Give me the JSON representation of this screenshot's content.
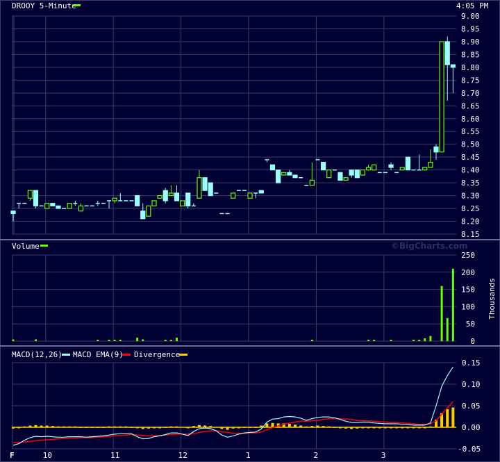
{
  "header": {
    "symbol_title": "DROOY 5-Minute",
    "time": "4:05 PM"
  },
  "watermark": "©BigCharts.com",
  "colors": {
    "background": "#000033",
    "grid": "#3c3c6c",
    "up": "#66ff00",
    "down": "#99ffff",
    "macd": "#99ffff",
    "signal": "#ff0000",
    "divergence": "#ffcc00"
  },
  "chart_data": [
    {
      "type": "candlestick",
      "title": "DROOY 5-Minute",
      "ylim": [
        8.15,
        9.0
      ],
      "yticks": [
        "9.00",
        "8.95",
        "8.90",
        "8.85",
        "8.80",
        "8.75",
        "8.70",
        "8.65",
        "8.60",
        "8.55",
        "8.50",
        "8.45",
        "8.40",
        "8.35",
        "8.30",
        "8.25",
        "8.20",
        "8.15"
      ],
      "xticks": [
        {
          "label": "F",
          "bar": 0
        },
        {
          "label": "10",
          "bar": 6
        },
        {
          "label": "11",
          "bar": 18
        },
        {
          "label": "12",
          "bar": 30
        },
        {
          "label": "1",
          "bar": 42
        },
        {
          "label": "2",
          "bar": 54
        },
        {
          "label": "3",
          "bar": 66
        }
      ],
      "ohlc": [
        [
          8.24,
          8.24,
          8.2,
          8.23
        ],
        [
          8.27,
          8.27,
          8.25,
          8.27
        ],
        [
          8.27,
          8.27,
          8.27,
          8.27
        ],
        [
          8.29,
          8.32,
          8.28,
          8.32
        ],
        [
          8.32,
          8.32,
          8.25,
          8.26
        ],
        [
          8.26,
          8.26,
          8.26,
          8.26
        ],
        [
          8.25,
          8.27,
          8.25,
          8.27
        ],
        [
          8.27,
          8.27,
          8.26,
          8.26
        ],
        [
          8.26,
          8.26,
          8.25,
          8.25
        ],
        [
          8.25,
          8.25,
          8.25,
          8.25
        ],
        [
          8.25,
          8.27,
          8.25,
          8.27
        ],
        [
          8.27,
          8.28,
          8.26,
          8.27
        ],
        [
          8.24,
          8.27,
          8.24,
          8.26
        ],
        [
          8.26,
          8.26,
          8.26,
          8.26
        ],
        [
          8.26,
          8.26,
          8.26,
          8.26
        ],
        [
          8.27,
          8.28,
          8.26,
          8.27
        ],
        [
          8.27,
          8.27,
          8.27,
          8.27
        ],
        [
          8.28,
          8.28,
          8.25,
          8.28
        ],
        [
          8.28,
          8.29,
          8.27,
          8.29
        ],
        [
          8.28,
          8.31,
          8.28,
          8.28
        ],
        [
          8.28,
          8.28,
          8.28,
          8.28
        ],
        [
          8.28,
          8.28,
          8.28,
          8.28
        ],
        [
          8.3,
          8.3,
          8.26,
          8.26
        ],
        [
          8.24,
          8.27,
          8.21,
          8.21
        ],
        [
          8.22,
          8.26,
          8.22,
          8.26
        ],
        [
          8.26,
          8.28,
          8.26,
          8.28
        ],
        [
          8.29,
          8.3,
          8.29,
          8.3
        ],
        [
          8.32,
          8.33,
          8.27,
          8.28
        ],
        [
          8.3,
          8.34,
          8.3,
          8.31
        ],
        [
          8.31,
          8.34,
          8.28,
          8.28
        ],
        [
          8.26,
          8.28,
          8.26,
          8.28
        ],
        [
          8.31,
          8.31,
          8.25,
          8.26
        ],
        [
          8.26,
          8.27,
          8.26,
          8.26
        ],
        [
          8.29,
          8.4,
          8.29,
          8.37
        ],
        [
          8.37,
          8.37,
          8.32,
          8.32
        ],
        [
          8.35,
          8.35,
          8.3,
          8.3
        ],
        [
          8.31,
          8.31,
          8.31,
          8.31
        ],
        [
          8.23,
          8.23,
          8.23,
          8.23
        ],
        [
          8.23,
          8.23,
          8.23,
          8.23
        ],
        [
          8.29,
          8.31,
          8.29,
          8.31
        ],
        [
          8.32,
          8.32,
          8.32,
          8.32
        ],
        [
          8.32,
          8.32,
          8.32,
          8.32
        ],
        [
          8.29,
          8.31,
          8.29,
          8.31
        ],
        [
          8.31,
          8.31,
          8.29,
          8.31
        ],
        [
          8.32,
          8.32,
          8.31,
          8.31
        ],
        [
          8.44,
          8.44,
          8.43,
          8.44
        ],
        [
          8.42,
          8.42,
          8.4,
          8.4
        ],
        [
          8.4,
          8.4,
          8.35,
          8.35
        ],
        [
          8.38,
          8.39,
          8.38,
          8.39
        ],
        [
          8.39,
          8.4,
          8.38,
          8.38
        ],
        [
          8.38,
          8.38,
          8.37,
          8.37
        ],
        [
          8.37,
          8.37,
          8.37,
          8.37
        ],
        [
          8.34,
          8.34,
          8.34,
          8.34
        ],
        [
          8.34,
          8.43,
          8.34,
          8.36
        ],
        [
          8.44,
          8.44,
          8.44,
          8.44
        ],
        [
          8.43,
          8.43,
          8.4,
          8.4
        ],
        [
          8.37,
          8.4,
          8.37,
          8.4
        ],
        [
          8.4,
          8.4,
          8.4,
          8.4
        ],
        [
          8.39,
          8.39,
          8.36,
          8.36
        ],
        [
          8.36,
          8.37,
          8.36,
          8.37
        ],
        [
          8.4,
          8.4,
          8.37,
          8.38
        ],
        [
          8.4,
          8.4,
          8.37,
          8.37
        ],
        [
          8.38,
          8.4,
          8.38,
          8.4
        ],
        [
          8.4,
          8.42,
          8.4,
          8.41
        ],
        [
          8.4,
          8.42,
          8.4,
          8.42
        ],
        [
          8.39,
          8.39,
          8.39,
          8.39
        ],
        [
          8.39,
          8.39,
          8.39,
          8.39
        ],
        [
          8.42,
          8.43,
          8.4,
          8.41
        ],
        [
          8.39,
          8.39,
          8.39,
          8.39
        ],
        [
          8.4,
          8.41,
          8.4,
          8.41
        ],
        [
          8.45,
          8.45,
          8.4,
          8.4
        ],
        [
          8.4,
          8.4,
          8.4,
          8.4
        ],
        [
          8.4,
          8.46,
          8.4,
          8.4
        ],
        [
          8.4,
          8.41,
          8.4,
          8.41
        ],
        [
          8.41,
          8.48,
          8.41,
          8.43
        ],
        [
          8.49,
          8.5,
          8.44,
          8.47
        ],
        [
          8.47,
          8.9,
          8.47,
          8.9
        ],
        [
          8.9,
          8.92,
          8.67,
          8.81
        ],
        [
          8.81,
          8.81,
          8.7,
          8.8
        ]
      ]
    },
    {
      "type": "bar",
      "title": "Volume",
      "ylabel": "Thousands",
      "ylim": [
        0,
        250
      ],
      "yticks": [
        "250",
        "200",
        "150",
        "100",
        "50",
        "0"
      ],
      "values": [
        5,
        0,
        0,
        0,
        5,
        0,
        0,
        0,
        0,
        0,
        0,
        0,
        0,
        0,
        0,
        4,
        0,
        4,
        4,
        4,
        0,
        0,
        10,
        5,
        0,
        0,
        0,
        4,
        4,
        10,
        0,
        0,
        0,
        0,
        0,
        0,
        0,
        0,
        0,
        0,
        0,
        0,
        0,
        0,
        0,
        0,
        0,
        0,
        0,
        0,
        0,
        0,
        0,
        4,
        0,
        0,
        0,
        0,
        0,
        0,
        0,
        0,
        0,
        4,
        4,
        0,
        0,
        4,
        0,
        0,
        0,
        4,
        4,
        8,
        15,
        0,
        160,
        67,
        210
      ]
    },
    {
      "type": "line",
      "title": "MACD(12,26)",
      "legend": [
        "MACD(12,26)",
        "MACD EMA(9)",
        "Divergence"
      ],
      "ylim": [
        -0.05,
        0.15
      ],
      "yticks": [
        "0.15",
        "0.10",
        "0.05",
        "0.00",
        "-0.05"
      ],
      "macd": [
        -0.042,
        -0.038,
        -0.03,
        -0.024,
        -0.021,
        -0.022,
        -0.021,
        -0.022,
        -0.023,
        -0.023,
        -0.022,
        -0.022,
        -0.022,
        -0.023,
        -0.022,
        -0.021,
        -0.02,
        -0.018,
        -0.016,
        -0.015,
        -0.015,
        -0.015,
        -0.022,
        -0.027,
        -0.026,
        -0.022,
        -0.02,
        -0.017,
        -0.013,
        -0.013,
        -0.016,
        -0.019,
        -0.01,
        -0.003,
        -0.002,
        -0.003,
        -0.008,
        -0.018,
        -0.023,
        -0.02,
        -0.016,
        -0.013,
        -0.012,
        -0.011,
        -0.004,
        0.012,
        0.019,
        0.02,
        0.024,
        0.025,
        0.024,
        0.021,
        0.016,
        0.02,
        0.023,
        0.024,
        0.024,
        0.022,
        0.018,
        0.014,
        0.011,
        0.011,
        0.012,
        0.012,
        0.01,
        0.009,
        0.008,
        0.008,
        0.008,
        0.007,
        0.006,
        0.005,
        0.005,
        0.005,
        0.01,
        0.05,
        0.095,
        0.12,
        0.14
      ],
      "signal": [
        -0.036,
        -0.035,
        -0.034,
        -0.033,
        -0.031,
        -0.03,
        -0.029,
        -0.028,
        -0.027,
        -0.026,
        -0.025,
        -0.025,
        -0.024,
        -0.024,
        -0.024,
        -0.023,
        -0.022,
        -0.021,
        -0.02,
        -0.019,
        -0.018,
        -0.017,
        -0.018,
        -0.019,
        -0.02,
        -0.02,
        -0.019,
        -0.018,
        -0.017,
        -0.016,
        -0.016,
        -0.016,
        -0.015,
        -0.012,
        -0.01,
        -0.008,
        -0.008,
        -0.01,
        -0.012,
        -0.014,
        -0.014,
        -0.014,
        -0.013,
        -0.013,
        -0.011,
        -0.006,
        -0.001,
        0.003,
        0.007,
        0.01,
        0.012,
        0.014,
        0.014,
        0.015,
        0.016,
        0.018,
        0.02,
        0.02,
        0.02,
        0.019,
        0.018,
        0.016,
        0.015,
        0.015,
        0.014,
        0.013,
        0.012,
        0.011,
        0.011,
        0.01,
        0.009,
        0.008,
        0.007,
        0.007,
        0.008,
        0.015,
        0.03,
        0.045,
        0.06
      ],
      "divergence": [
        -0.003,
        -0.002,
        0.002,
        0.004,
        0.005,
        0.004,
        0.004,
        0.003,
        0.002,
        0.002,
        0.002,
        0.002,
        0.001,
        0.001,
        0.001,
        0.001,
        0.001,
        0.002,
        0.002,
        0.002,
        0.002,
        0.001,
        -0.002,
        -0.004,
        -0.003,
        -0.001,
        -0.001,
        0.001,
        0.002,
        0.002,
        0.0,
        -0.002,
        0.003,
        0.005,
        0.004,
        0.003,
        0.0,
        -0.004,
        -0.006,
        -0.003,
        -0.001,
        0.001,
        0.001,
        0.001,
        0.004,
        0.009,
        0.01,
        0.009,
        0.009,
        0.008,
        0.006,
        0.004,
        0.002,
        0.003,
        0.004,
        0.003,
        0.002,
        0.001,
        -0.001,
        -0.003,
        -0.004,
        -0.003,
        -0.002,
        -0.002,
        -0.002,
        -0.002,
        -0.002,
        -0.002,
        -0.002,
        -0.002,
        -0.002,
        -0.002,
        -0.001,
        -0.001,
        0.002,
        0.018,
        0.033,
        0.042,
        0.046
      ]
    }
  ]
}
